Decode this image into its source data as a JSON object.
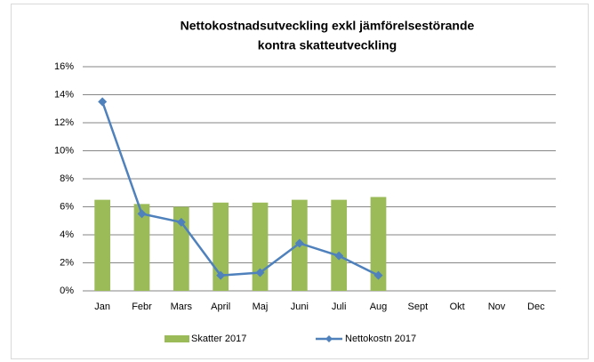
{
  "chart_data": {
    "type": "bar_line",
    "title": [
      "Nettokostnadsutveckling exkl jämförelsestörande",
      "kontra skatteutveckling"
    ],
    "categories": [
      "Jan",
      "Febr",
      "Mars",
      "April",
      "Maj",
      "Juni",
      "Juli",
      "Aug",
      "Sept",
      "Okt",
      "Nov",
      "Dec"
    ],
    "series": [
      {
        "name": "Skatter 2017",
        "type": "bar",
        "color": "#9bbb59",
        "values": [
          6.5,
          6.2,
          6.0,
          6.3,
          6.3,
          6.5,
          6.5,
          6.7,
          null,
          null,
          null,
          null
        ]
      },
      {
        "name": "Nettokostn 2017",
        "type": "line",
        "color": "#4f81bd",
        "values": [
          13.5,
          5.5,
          4.9,
          1.1,
          1.3,
          3.4,
          2.5,
          1.1,
          null,
          null,
          null,
          null
        ]
      }
    ],
    "ylim": [
      0,
      16
    ],
    "yticks": [
      {
        "value": 0,
        "label": "0%"
      },
      {
        "value": 2,
        "label": "2%"
      },
      {
        "value": 4,
        "label": "4%"
      },
      {
        "value": 6,
        "label": "6%"
      },
      {
        "value": 8,
        "label": "8%"
      },
      {
        "value": 10,
        "label": "10%"
      },
      {
        "value": 12,
        "label": "12%"
      },
      {
        "value": 14,
        "label": "14%"
      },
      {
        "value": 16,
        "label": "16%"
      }
    ],
    "grid": true,
    "legend": "bottom"
  }
}
